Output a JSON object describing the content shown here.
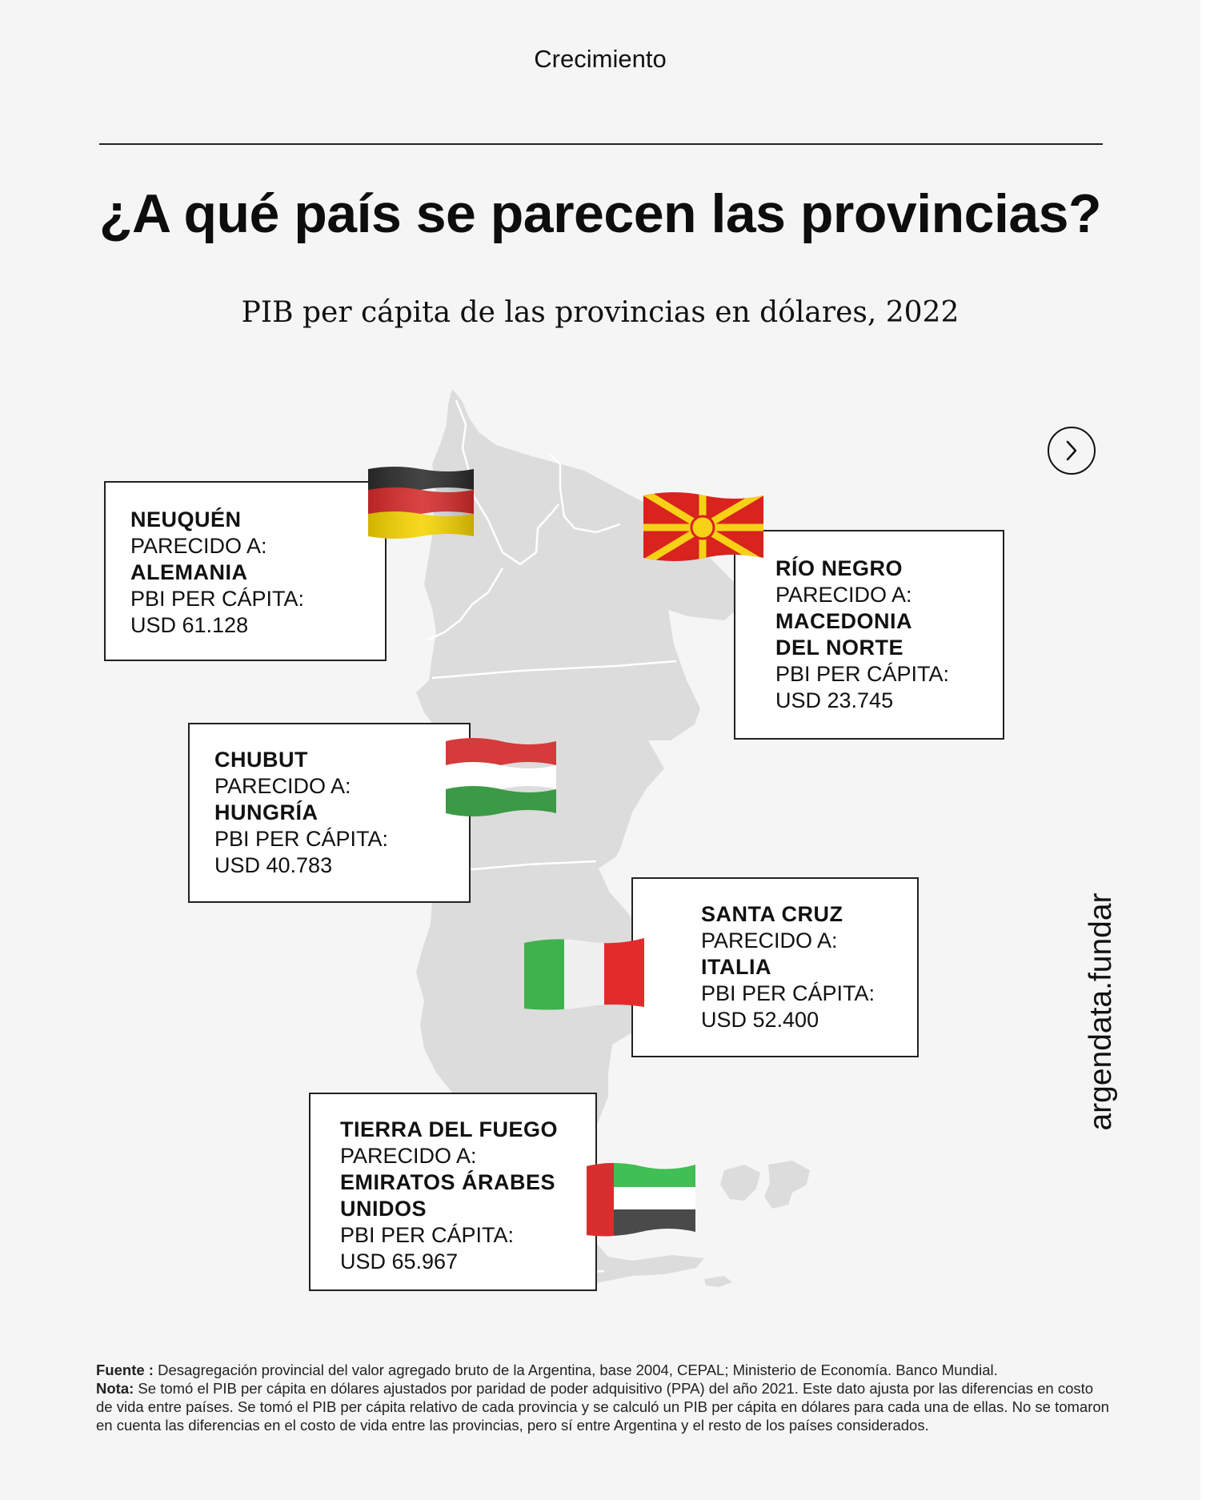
{
  "header": {
    "section_label": "Crecimiento",
    "title": "¿A qué país se parecen las provincias?",
    "subtitle": "PIB per cápita de las provincias en dólares, 2022"
  },
  "cards": [
    {
      "province": "NEUQUÉN",
      "similar_label": "PARECIDO A:",
      "country": "ALEMANIA",
      "gdp_label": "PBI PER CÁPITA:",
      "gdp_value": "USD 61.128",
      "flag": "germany-flag"
    },
    {
      "province": "RÍO NEGRO",
      "similar_label": "PARECIDO A:",
      "country_line1": "MACEDONIA",
      "country_line2": "DEL NORTE",
      "gdp_label": "PBI PER CÁPITA:",
      "gdp_value": "USD 23.745",
      "flag": "north-macedonia-flag"
    },
    {
      "province": "CHUBUT",
      "similar_label": "PARECIDO A:",
      "country": "HUNGRÍA",
      "gdp_label": "PBI PER CÁPITA:",
      "gdp_value": "USD 40.783",
      "flag": "hungary-flag"
    },
    {
      "province": "SANTA CRUZ",
      "similar_label": "PARECIDO A:",
      "country": "ITALIA",
      "gdp_label": "PBI PER CÁPITA:",
      "gdp_value": "USD 52.400",
      "flag": "italy-flag"
    },
    {
      "province": "TIERRA DEL FUEGO",
      "similar_label": "PARECIDO A:",
      "country_line1": "EMIRATOS ÁRABES",
      "country_line2": "UNIDOS",
      "gdp_label": "PBI PER CÁPITA:",
      "gdp_value": "USD 65.967",
      "flag": "uae-flag"
    }
  ],
  "navigation": {
    "next_icon": "chevron-right-icon"
  },
  "brand": "argendata.fundar",
  "footnote": {
    "source_label": "Fuente :",
    "source_text": " Desagregación provincial del valor agregado bruto de la Argentina, base 2004, CEPAL; Ministerio de Economía. Banco Mundial.",
    "note_label": "Nota:",
    "note_text": " Se tomó el PIB per cápita en dólares ajustados por paridad de poder adquisitivo (PPA) del año 2021. Este dato ajusta por las diferencias en costo de vida entre países. Se tomó el PIB per cápita relativo de cada provincia y se calculó un PIB per cápita en dólares para cada una de ellas. No se tomaron en cuenta las diferencias en el costo de vida entre las provincias, pero sí entre Argentina y el resto de los países considerados."
  },
  "colors": {
    "background": "#f5f5f5",
    "map_fill": "#dcdcdc",
    "map_border": "#ffffff",
    "text": "#111111"
  }
}
